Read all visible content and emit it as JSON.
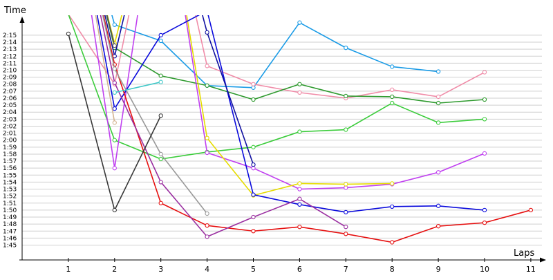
{
  "chart_data": {
    "type": "line",
    "xlabel": "Laps",
    "ylabel": "Time",
    "x_ticks": [
      1,
      2,
      3,
      4,
      5,
      6,
      7,
      8,
      9,
      10,
      11
    ],
    "xlim": [
      0,
      11
    ],
    "ylim_seconds": [
      104,
      138
    ],
    "y_tick_labels": [
      "1:45",
      "1:46",
      "1:47",
      "1:48",
      "1:49",
      "1:50",
      "1:51",
      "1:52",
      "1:53",
      "1:54",
      "1:55",
      "1:56",
      "1:57",
      "1:58",
      "1:59",
      "2:00",
      "2:01",
      "2:02",
      "2:03",
      "2:04",
      "2:05",
      "2:06",
      "2:07",
      "2:08",
      "2:09",
      "2:10",
      "2:11",
      "2:12",
      "2:13",
      "2:14",
      "2:15"
    ],
    "grid": true,
    "series": [
      {
        "color": "#1a9be6",
        "points": [
          [
            1,
            160
          ],
          [
            2,
            136.5
          ],
          [
            3,
            134.2
          ],
          [
            4,
            127.8
          ],
          [
            5,
            127.5
          ],
          [
            6,
            136.8
          ],
          [
            7,
            133.2
          ],
          [
            8,
            130.5
          ],
          [
            9,
            129.8
          ]
        ]
      },
      {
        "color": "#f08ca8",
        "points": [
          [
            1,
            138
          ],
          [
            2,
            128
          ],
          [
            3,
            160
          ],
          [
            4,
            130.6
          ],
          [
            5,
            128
          ],
          [
            6,
            126.8
          ],
          [
            7,
            126
          ],
          [
            8,
            127.2
          ],
          [
            9,
            126.2
          ],
          [
            10,
            129.7
          ]
        ]
      },
      {
        "color": "#2e9a2e",
        "points": [
          [
            1,
            160
          ],
          [
            2,
            133.2
          ],
          [
            3,
            129.2
          ],
          [
            4,
            127.8
          ],
          [
            5,
            125.8
          ],
          [
            6,
            128
          ],
          [
            7,
            126.3
          ],
          [
            8,
            126.2
          ],
          [
            9,
            125.3
          ],
          [
            10,
            125.8
          ]
        ]
      },
      {
        "color": "#3bcc3b",
        "points": [
          [
            1,
            138
          ],
          [
            2,
            120
          ],
          [
            3,
            117.3
          ],
          [
            4,
            118.3
          ],
          [
            5,
            119
          ],
          [
            6,
            121.2
          ],
          [
            7,
            121.5
          ],
          [
            8,
            125.3
          ],
          [
            9,
            122.5
          ],
          [
            10,
            123
          ]
        ]
      },
      {
        "color": "#c040f0",
        "points": [
          [
            1,
            160
          ],
          [
            2,
            116
          ],
          [
            3,
            160
          ],
          [
            4,
            118.2
          ],
          [
            5,
            116
          ],
          [
            6,
            113
          ],
          [
            7,
            113.2
          ],
          [
            8,
            113.7
          ],
          [
            9,
            115.4
          ],
          [
            10,
            118.1
          ]
        ]
      },
      {
        "color": "#e6dc00",
        "points": [
          [
            1,
            160
          ],
          [
            2,
            133.8
          ],
          [
            3,
            160
          ],
          [
            4,
            120.3
          ],
          [
            5,
            112.1
          ],
          [
            6,
            113.8
          ],
          [
            7,
            113.7
          ],
          [
            8,
            113.8
          ]
        ]
      },
      {
        "color": "#0a0adc",
        "points": [
          [
            1,
            160
          ],
          [
            2,
            124.5
          ],
          [
            3,
            135
          ],
          [
            4,
            138.5
          ],
          [
            5,
            112.2
          ],
          [
            6,
            110.8
          ],
          [
            7,
            109.7
          ],
          [
            8,
            110.5
          ],
          [
            9,
            110.6
          ],
          [
            10,
            110
          ]
        ]
      },
      {
        "color": "#1010a0",
        "points": [
          [
            1,
            160
          ],
          [
            2,
            132
          ],
          [
            3,
            160
          ],
          [
            4,
            135.4
          ],
          [
            5,
            116.5
          ]
        ]
      },
      {
        "color": "#e61010",
        "points": [
          [
            1,
            160
          ],
          [
            2,
            130.8
          ],
          [
            3,
            111
          ],
          [
            4,
            107.8
          ],
          [
            5,
            107
          ],
          [
            6,
            107.6
          ],
          [
            7,
            106.6
          ],
          [
            8,
            105.4
          ],
          [
            9,
            107.7
          ],
          [
            10,
            108.2
          ],
          [
            11,
            110
          ]
        ]
      },
      {
        "color": "#9a2ea0",
        "points": [
          [
            1,
            160
          ],
          [
            2,
            128.2
          ],
          [
            3,
            114
          ],
          [
            4,
            106.2
          ],
          [
            5,
            109
          ],
          [
            6,
            111.6
          ],
          [
            7,
            107.6
          ]
        ]
      },
      {
        "color": "#999999",
        "points": [
          [
            1,
            160
          ],
          [
            2,
            130.2
          ],
          [
            3,
            118
          ],
          [
            4,
            109.5
          ]
        ]
      },
      {
        "color": "#383838",
        "points": [
          [
            1,
            135.2
          ],
          [
            2,
            110
          ],
          [
            3,
            123.5
          ]
        ]
      },
      {
        "color": "#555555",
        "points": [
          [
            1,
            160
          ],
          [
            2,
            133.5
          ]
        ]
      },
      {
        "color": "#40c8c8",
        "points": [
          [
            2,
            126.8
          ],
          [
            3,
            128.3
          ]
        ]
      },
      {
        "color": "#d4b490",
        "points": [
          [
            1,
            160
          ],
          [
            2,
            122.5
          ]
        ]
      }
    ]
  }
}
